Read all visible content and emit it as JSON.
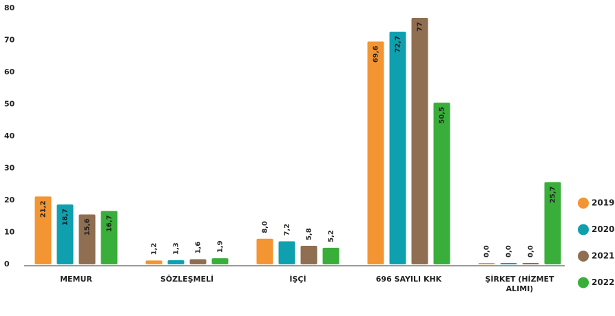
{
  "chart_data": {
    "type": "bar",
    "categories": [
      "MEMUR",
      "SÖZLEŞMELİ",
      "İŞÇİ",
      "696 SAYILI KHK",
      "ŞİRKET (HİZMET ALIMI)"
    ],
    "series": [
      {
        "name": "2019",
        "color": "#f39533",
        "values": [
          21.2,
          1.2,
          8.0,
          69.6,
          0.0
        ],
        "value_labels": [
          "21,2",
          "1,2",
          "8,0",
          "69,6",
          "0,0"
        ]
      },
      {
        "name": "2020",
        "color": "#0fa0b0",
        "values": [
          18.7,
          1.3,
          7.2,
          72.7,
          0.0
        ],
        "value_labels": [
          "18,7",
          "1,3",
          "7,2",
          "72,7",
          "0,0"
        ]
      },
      {
        "name": "2021",
        "color": "#8f6e52",
        "values": [
          15.6,
          1.6,
          5.8,
          77,
          0.0
        ],
        "value_labels": [
          "15,6",
          "1,6",
          "5,8",
          "77",
          "0,0"
        ]
      },
      {
        "name": "2022",
        "color": "#3aae3a",
        "values": [
          16.7,
          1.9,
          5.2,
          50.5,
          25.7
        ],
        "value_labels": [
          "16,7",
          "1,9",
          "5,2",
          "50,5",
          "25,7"
        ]
      }
    ],
    "ylim": [
      0,
      80
    ],
    "yticks": [
      0,
      10,
      20,
      30,
      40,
      50,
      60,
      70,
      80
    ],
    "grid": false,
    "legend": "right"
  }
}
